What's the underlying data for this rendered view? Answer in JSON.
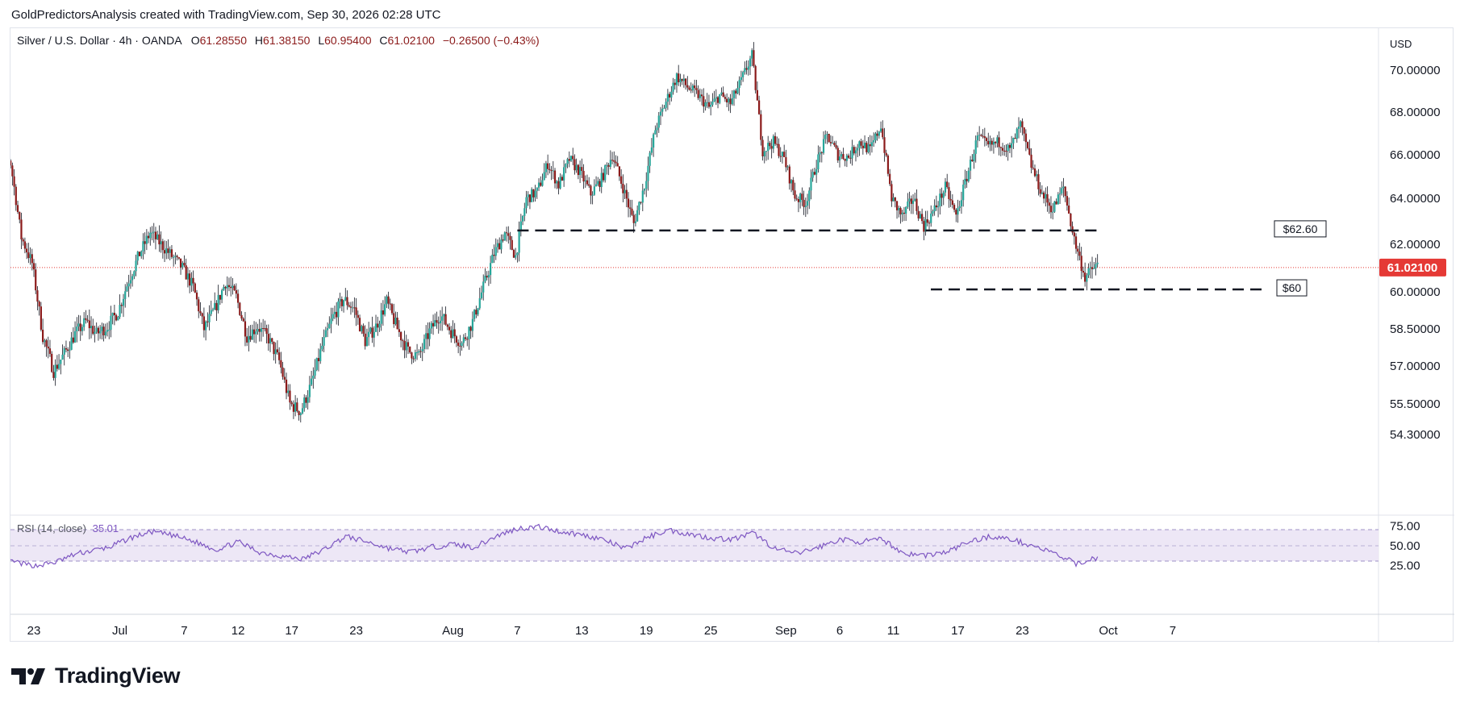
{
  "attribution": "GoldPredictorsAnalysis created with TradingView.com, Sep 30, 2026 02:28 UTC",
  "legend": {
    "symbol": "Silver / U.S. Dollar · 4h · OANDA",
    "o_label": "O",
    "o_value": "61.28550",
    "h_label": "H",
    "h_value": "61.38150",
    "l_label": "L",
    "l_value": "60.95400",
    "c_label": "C",
    "c_value": "61.02100",
    "change": "−0.26500 (−0.43%)"
  },
  "currency": "USD",
  "rsi_legend": {
    "label": "RSI (14, close)",
    "value": "35.01"
  },
  "logo_text": "TradingView",
  "colors": {
    "up": "#26a69a",
    "down": "#8b1a1a",
    "price_line": "#e53935",
    "rsi": "#7e57c2",
    "rsi_band": "#ede7f6",
    "level": "#131722"
  },
  "chart_data": {
    "type": "candlestick",
    "y_ticks": [
      "70.00000",
      "68.00000",
      "66.00000",
      "64.00000",
      "62.00000",
      "60.00000",
      "58.50000",
      "57.00000",
      "55.50000",
      "54.30000"
    ],
    "x_ticks": [
      "23",
      "Jul",
      "7",
      "12",
      "17",
      "23",
      "Aug",
      "7",
      "13",
      "19",
      "25",
      "Sep",
      "6",
      "11",
      "17",
      "23",
      "Oct",
      "7"
    ],
    "current_price": "61.02100",
    "levels": [
      {
        "label": "$62.60",
        "value": 62.6
      },
      {
        "label": "$60",
        "value": 60.1
      }
    ],
    "price_path": [
      [
        "Jun 19",
        65.4
      ],
      [
        "Jun 20",
        66.8
      ],
      [
        "Jun 21",
        65.6
      ],
      [
        "Jun 22",
        62.3
      ],
      [
        "Jun 23",
        61.2
      ],
      [
        "Jun 24",
        58.2
      ],
      [
        "Jun 25",
        56.8
      ],
      [
        "Jun 26",
        57.5
      ],
      [
        "Jun 27",
        58.3
      ],
      [
        "Jun 28",
        58.8
      ],
      [
        "Jun 29",
        58.3
      ],
      [
        "Jun 30",
        58.6
      ],
      [
        "Jul 1",
        59.2
      ],
      [
        "Jul 2",
        60.5
      ],
      [
        "Jul 3",
        61.6
      ],
      [
        "Jul 4",
        62.5
      ],
      [
        "Jul 5",
        62.0
      ],
      [
        "Jul 6",
        61.5
      ],
      [
        "Jul 7",
        61.0
      ],
      [
        "Jul 8",
        60.2
      ],
      [
        "Jul 9",
        58.5
      ],
      [
        "Jul 10",
        59.3
      ],
      [
        "Jul 11",
        60.4
      ],
      [
        "Jul 12",
        59.8
      ],
      [
        "Jul 13",
        58.2
      ],
      [
        "Jul 14",
        58.6
      ],
      [
        "Jul 15",
        58.1
      ],
      [
        "Jul 16",
        57.2
      ],
      [
        "Jul 17",
        55.5
      ],
      [
        "Jul 18",
        55.2
      ],
      [
        "Jul 19",
        56.3
      ],
      [
        "Jul 20",
        57.8
      ],
      [
        "Jul 21",
        59.0
      ],
      [
        "Jul 22",
        59.7
      ],
      [
        "Jul 23",
        59.3
      ],
      [
        "Jul 24",
        58.0
      ],
      [
        "Jul 25",
        58.6
      ],
      [
        "Jul 26",
        59.6
      ],
      [
        "Jul 27",
        58.5
      ],
      [
        "Jul 28",
        57.6
      ],
      [
        "Jul 29",
        57.4
      ],
      [
        "Jul 30",
        58.4
      ],
      [
        "Jul 31",
        59.1
      ],
      [
        "Aug 1",
        58.4
      ],
      [
        "Aug 2",
        57.9
      ],
      [
        "Aug 3",
        58.8
      ],
      [
        "Aug 4",
        60.2
      ],
      [
        "Aug 5",
        61.6
      ],
      [
        "Aug 6",
        62.5
      ],
      [
        "Aug 7",
        61.5
      ],
      [
        "Aug 8",
        64.0
      ],
      [
        "Aug 9",
        64.3
      ],
      [
        "Aug 10",
        65.6
      ],
      [
        "Aug 11",
        64.6
      ],
      [
        "Aug 12",
        65.8
      ],
      [
        "Aug 13",
        65.2
      ],
      [
        "Aug 14",
        64.2
      ],
      [
        "Aug 15",
        64.9
      ],
      [
        "Aug 16",
        66.0
      ],
      [
        "Aug 17",
        64.5
      ],
      [
        "Aug 18",
        62.9
      ],
      [
        "Aug 19",
        64.6
      ],
      [
        "Aug 20",
        67.2
      ],
      [
        "Aug 21",
        68.5
      ],
      [
        "Aug 22",
        69.7
      ],
      [
        "Aug 23",
        69.2
      ],
      [
        "Aug 24",
        68.8
      ],
      [
        "Aug 25",
        68.2
      ],
      [
        "Aug 26",
        68.8
      ],
      [
        "Aug 27",
        68.4
      ],
      [
        "Aug 28",
        69.5
      ],
      [
        "Aug 29",
        70.7
      ],
      [
        "Aug 30",
        66.2
      ],
      [
        "Aug 31",
        66.6
      ],
      [
        "Sep 1",
        65.8
      ],
      [
        "Sep 2",
        64.1
      ],
      [
        "Sep 3",
        63.8
      ],
      [
        "Sep 4",
        65.6
      ],
      [
        "Sep 5",
        66.9
      ],
      [
        "Sep 6",
        66.0
      ],
      [
        "Sep 7",
        65.9
      ],
      [
        "Sep 8",
        66.6
      ],
      [
        "Sep 9",
        66.2
      ],
      [
        "Sep 10",
        67.4
      ],
      [
        "Sep 11",
        64.0
      ],
      [
        "Sep 12",
        63.2
      ],
      [
        "Sep 13",
        64.0
      ],
      [
        "Sep 14",
        62.8
      ],
      [
        "Sep 15",
        63.5
      ],
      [
        "Sep 16",
        64.5
      ],
      [
        "Sep 17",
        63.2
      ],
      [
        "Sep 18",
        65.0
      ],
      [
        "Sep 19",
        66.8
      ],
      [
        "Sep 20",
        66.4
      ],
      [
        "Sep 21",
        66.6
      ],
      [
        "Sep 22",
        66.2
      ],
      [
        "Sep 23",
        67.4
      ],
      [
        "Sep 24",
        65.5
      ],
      [
        "Sep 25",
        64.2
      ],
      [
        "Sep 26",
        63.5
      ],
      [
        "Sep 27",
        64.5
      ],
      [
        "Sep 28",
        62.2
      ],
      [
        "Sep 29",
        60.6
      ],
      [
        "Sep 30",
        61.1
      ]
    ],
    "rsi": {
      "levels": [
        70,
        50,
        30
      ],
      "y_ticks": [
        "75.00",
        "50.00",
        "25.00"
      ],
      "path": [
        [
          "Jun 19",
          36
        ],
        [
          "Jun 21",
          30
        ],
        [
          "Jun 23",
          24
        ],
        [
          "Jun 25",
          29
        ],
        [
          "Jun 27",
          40
        ],
        [
          "Jun 30",
          48
        ],
        [
          "Jul 2",
          60
        ],
        [
          "Jul 4",
          68
        ],
        [
          "Jul 6",
          63
        ],
        [
          "Jul 8",
          55
        ],
        [
          "Jul 10",
          45
        ],
        [
          "Jul 12",
          55
        ],
        [
          "Jul 14",
          42
        ],
        [
          "Jul 16",
          37
        ],
        [
          "Jul 18",
          33
        ],
        [
          "Jul 20",
          45
        ],
        [
          "Jul 22",
          62
        ],
        [
          "Jul 24",
          55
        ],
        [
          "Jul 26",
          47
        ],
        [
          "Jul 28",
          42
        ],
        [
          "Jul 30",
          48
        ],
        [
          "Aug 1",
          52
        ],
        [
          "Aug 3",
          48
        ],
        [
          "Aug 5",
          62
        ],
        [
          "Aug 7",
          72
        ],
        [
          "Aug 9",
          74
        ],
        [
          "Aug 11",
          68
        ],
        [
          "Aug 13",
          64
        ],
        [
          "Aug 15",
          58
        ],
        [
          "Aug 17",
          46
        ],
        [
          "Aug 19",
          60
        ],
        [
          "Aug 21",
          70
        ],
        [
          "Aug 23",
          65
        ],
        [
          "Aug 25",
          60
        ],
        [
          "Aug 27",
          58
        ],
        [
          "Aug 29",
          66
        ],
        [
          "Aug 31",
          46
        ],
        [
          "Sep 2",
          40
        ],
        [
          "Sep 4",
          48
        ],
        [
          "Sep 6",
          58
        ],
        [
          "Sep 8",
          55
        ],
        [
          "Sep 10",
          58
        ],
        [
          "Sep 12",
          40
        ],
        [
          "Sep 14",
          38
        ],
        [
          "Sep 16",
          42
        ],
        [
          "Sep 18",
          55
        ],
        [
          "Sep 20",
          62
        ],
        [
          "Sep 22",
          58
        ],
        [
          "Sep 24",
          50
        ],
        [
          "Sep 26",
          40
        ],
        [
          "Sep 28",
          27
        ],
        [
          "Sep 30",
          35
        ]
      ]
    }
  }
}
